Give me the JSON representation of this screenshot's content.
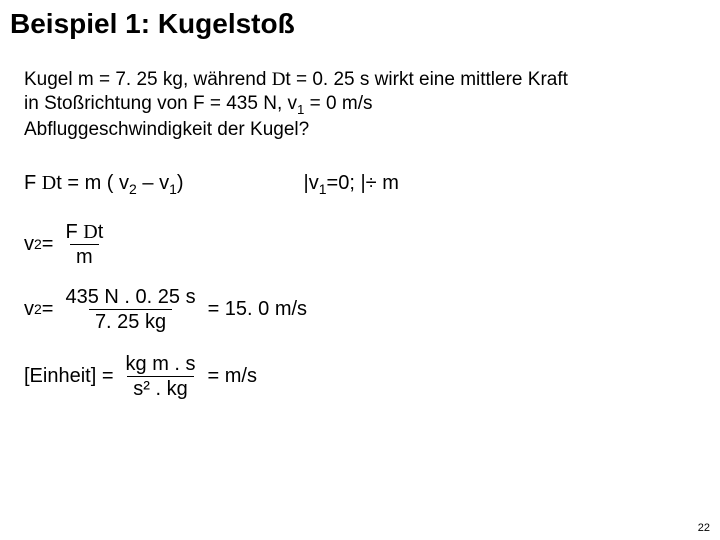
{
  "title": "Beispiel 1: Kugelstoß",
  "problem": {
    "line1_a": "Kugel m = 7. 25 kg, während ",
    "line1_b": "t = 0. 25 s wirkt eine mittlere Kraft",
    "line2_a": "in Stoßrichtung von F = 435 N, v",
    "line2_b": " = 0 m/s",
    "line3": "Abfluggeschwindigkeit der Kugel?"
  },
  "eq1": {
    "lhs_a": "F ",
    "lhs_b": "t = m ( v",
    "lhs_c": " – v",
    "lhs_d": ")",
    "cond_a": "|v",
    "cond_b": "=0;  |÷ m"
  },
  "eq2": {
    "lhs": "v",
    "eq": " = ",
    "num_a": "F ",
    "num_b": "t",
    "den": "m"
  },
  "eq3": {
    "lhs": "v",
    "eq": " = ",
    "num": "435 N  .  0. 25 s",
    "den": "7. 25 kg",
    "rhs": " =  15. 0 m/s"
  },
  "eq4": {
    "lhs": "[Einheit] = ",
    "num": "kg m . s",
    "den": "s² . kg",
    "rhs": " =   m/s"
  },
  "sub1": "1",
  "sub2": "2",
  "delta": "D",
  "pagenum": "22"
}
